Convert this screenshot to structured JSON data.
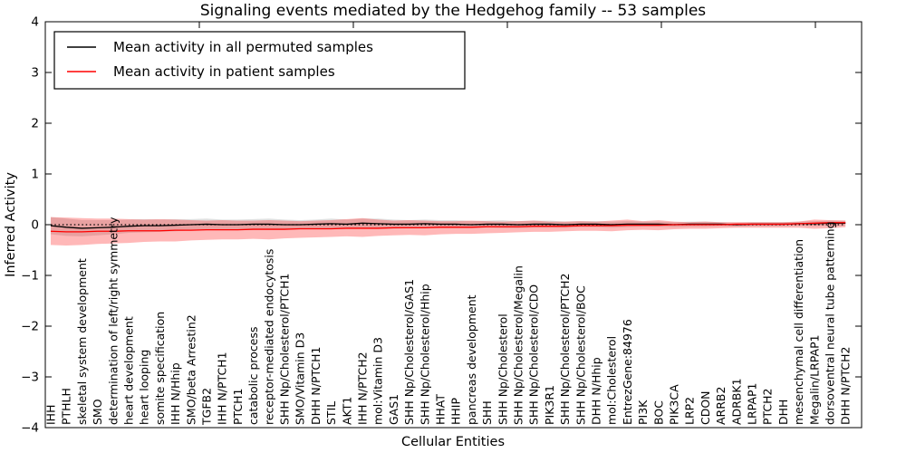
{
  "figure": {
    "title": "Signaling events mediated by the Hedgehog family -- 53 samples"
  },
  "axes": {
    "xlabel": "Cellular Entities",
    "ylabel": "Inferred Activity",
    "ylim": [
      -4,
      4
    ],
    "yticks": [
      4,
      3,
      2,
      1,
      0,
      -1,
      -2,
      -3,
      -4
    ],
    "ytick_labels": [
      "4",
      "3",
      "2",
      "1",
      "0",
      "−1",
      "−2",
      "−3",
      "−4"
    ]
  },
  "legend": {
    "entries": [
      {
        "label": "Mean activity in all permuted samples",
        "color": "#000000"
      },
      {
        "label": "Mean activity in patient samples",
        "color": "#ff0000"
      }
    ]
  },
  "chart_data": {
    "type": "line",
    "title": "Signaling events mediated by the Hedgehog family -- 53 samples",
    "xlabel": "Cellular Entities",
    "ylabel": "Inferred Activity",
    "ylim": [
      -4,
      4
    ],
    "grid": false,
    "legend_position": "upper left",
    "zero_reference_line": 0,
    "categories": [
      "IHH",
      "PTHLH",
      "skeletal system development",
      "SMO",
      "determination of left/right symmetry",
      "heart development",
      "heart looping",
      "somite specification",
      "IHH N/Hhip",
      "SMO/beta Arrestin2",
      "TGFB2",
      "IHH N/PTCH1",
      "PTCH1",
      "catabolic process",
      "receptor-mediated endocytosis",
      "SHH Np/Cholesterol/PTCH1",
      "SMO/Vitamin D3",
      "DHH N/PTCH1",
      "STIL",
      "AKT1",
      "IHH N/PTCH2",
      "mol:Vitamin D3",
      "GAS1",
      "SHH Np/Cholesterol/GAS1",
      "SHH Np/Cholesterol/Hhip",
      "HHAT",
      "HHIP",
      "pancreas development",
      "SHH",
      "SHH Np/Cholesterol",
      "SHH Np/Cholesterol/Megalin",
      "SHH Np/Cholesterol/CDO",
      "PIK3R1",
      "SHH Np/Cholesterol/PTCH2",
      "SHH Np/Cholesterol/BOC",
      "DHH N/Hhip",
      "mol:Cholesterol",
      "EntrezGene:84976",
      "PI3K",
      "BOC",
      "PIK3CA",
      "LRP2",
      "CDON",
      "ARRB2",
      "ADRBK1",
      "LRPAP1",
      "PTCH2",
      "DHH",
      "mesenchymal cell differentiation",
      "Megalin/LRPAP1",
      "dorsoventral neural tube patterning",
      "DHH N/PTCH2"
    ],
    "series": [
      {
        "name": "Mean activity in all permuted samples",
        "color": "#000000",
        "band_color": "#bbbbbb",
        "band_opacity": 0.45,
        "values": [
          -0.02,
          -0.05,
          -0.07,
          -0.06,
          -0.05,
          -0.03,
          -0.02,
          -0.02,
          -0.01,
          0.0,
          0.01,
          0.0,
          0.0,
          0.01,
          0.01,
          0.0,
          0.0,
          0.01,
          0.02,
          0.01,
          0.03,
          0.02,
          0.01,
          0.01,
          0.02,
          0.01,
          0.01,
          0.0,
          0.01,
          0.01,
          0.0,
          0.01,
          0.01,
          0.0,
          0.01,
          0.01,
          0.0,
          0.01,
          0.01,
          0.01,
          0.0,
          0.01,
          0.01,
          0.01,
          0.0,
          0.01,
          0.01,
          0.01,
          0.02,
          0.02,
          0.03,
          0.03
        ],
        "band_upper": [
          0.15,
          0.12,
          0.09,
          0.09,
          0.09,
          0.1,
          0.11,
          0.1,
          0.11,
          0.11,
          0.12,
          0.1,
          0.1,
          0.11,
          0.12,
          0.1,
          0.09,
          0.1,
          0.12,
          0.1,
          0.12,
          0.12,
          0.1,
          0.09,
          0.1,
          0.09,
          0.09,
          0.07,
          0.08,
          0.09,
          0.07,
          0.08,
          0.08,
          0.06,
          0.07,
          0.07,
          0.06,
          0.07,
          0.06,
          0.06,
          0.05,
          0.06,
          0.06,
          0.05,
          0.04,
          0.05,
          0.05,
          0.05,
          0.06,
          0.07,
          0.08,
          0.08
        ],
        "band_lower": [
          -0.19,
          -0.22,
          -0.23,
          -0.21,
          -0.19,
          -0.16,
          -0.15,
          -0.14,
          -0.13,
          -0.11,
          -0.1,
          -0.1,
          -0.1,
          -0.09,
          -0.1,
          -0.1,
          -0.09,
          -0.08,
          -0.08,
          -0.08,
          -0.06,
          -0.08,
          -0.08,
          -0.07,
          -0.06,
          -0.07,
          -0.07,
          -0.07,
          -0.06,
          -0.07,
          -0.07,
          -0.06,
          -0.06,
          -0.06,
          -0.05,
          -0.05,
          -0.06,
          -0.05,
          -0.04,
          -0.04,
          -0.05,
          -0.04,
          -0.04,
          -0.03,
          -0.04,
          -0.03,
          -0.03,
          -0.03,
          -0.02,
          -0.03,
          -0.02,
          -0.02
        ]
      },
      {
        "name": "Mean activity in patient samples",
        "color": "#ff0000",
        "band_color": "#ff0000",
        "band_opacity": 0.28,
        "values": [
          -0.13,
          -0.14,
          -0.14,
          -0.13,
          -0.13,
          -0.12,
          -0.12,
          -0.12,
          -0.11,
          -0.11,
          -0.1,
          -0.1,
          -0.1,
          -0.09,
          -0.09,
          -0.09,
          -0.08,
          -0.08,
          -0.08,
          -0.07,
          -0.07,
          -0.07,
          -0.06,
          -0.06,
          -0.06,
          -0.05,
          -0.05,
          -0.05,
          -0.04,
          -0.04,
          -0.04,
          -0.03,
          -0.03,
          -0.03,
          -0.02,
          -0.02,
          -0.02,
          -0.01,
          -0.01,
          -0.01,
          0.0,
          0.0,
          0.0,
          0.0,
          0.01,
          0.01,
          0.01,
          0.01,
          0.02,
          0.03,
          0.04,
          0.04
        ],
        "band_upper": [
          0.15,
          0.14,
          0.13,
          0.12,
          0.12,
          0.11,
          0.1,
          0.11,
          0.1,
          0.09,
          0.08,
          0.09,
          0.08,
          0.08,
          0.09,
          0.08,
          0.07,
          0.08,
          0.09,
          0.11,
          0.13,
          0.1,
          0.08,
          0.09,
          0.08,
          0.07,
          0.07,
          0.08,
          0.07,
          0.06,
          0.07,
          0.08,
          0.06,
          0.06,
          0.07,
          0.06,
          0.08,
          0.1,
          0.07,
          0.09,
          0.06,
          0.05,
          0.06,
          0.05,
          0.05,
          0.05,
          0.05,
          0.05,
          0.06,
          0.1,
          0.09,
          0.08
        ],
        "band_lower": [
          -0.4,
          -0.41,
          -0.4,
          -0.38,
          -0.37,
          -0.36,
          -0.34,
          -0.33,
          -0.33,
          -0.31,
          -0.3,
          -0.29,
          -0.29,
          -0.28,
          -0.29,
          -0.27,
          -0.26,
          -0.25,
          -0.24,
          -0.23,
          -0.24,
          -0.22,
          -0.21,
          -0.2,
          -0.21,
          -0.19,
          -0.18,
          -0.18,
          -0.17,
          -0.16,
          -0.15,
          -0.14,
          -0.14,
          -0.13,
          -0.12,
          -0.12,
          -0.13,
          -0.11,
          -0.1,
          -0.11,
          -0.09,
          -0.08,
          -0.08,
          -0.07,
          -0.06,
          -0.06,
          -0.06,
          -0.06,
          -0.06,
          -0.08,
          -0.07,
          -0.05
        ]
      }
    ]
  }
}
